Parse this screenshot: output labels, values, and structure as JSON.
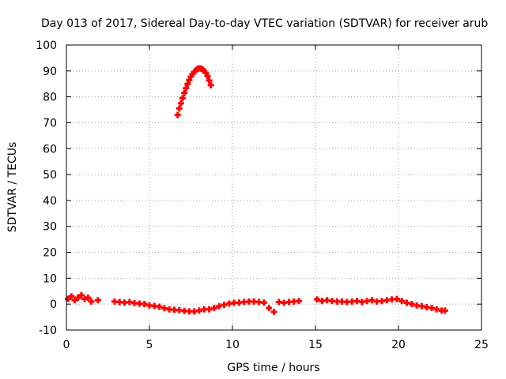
{
  "chart_data": {
    "type": "scatter",
    "title": "Day 013 of 2017, Sidereal Day-to-day VTEC variation (SDTVAR) for receiver arub",
    "xlabel": "GPS time / hours",
    "ylabel": "SDTVAR / TECUs",
    "xlim": [
      0,
      25
    ],
    "ylim": [
      -10,
      100
    ],
    "xticks": [
      0,
      5,
      10,
      15,
      20,
      25
    ],
    "yticks": [
      -10,
      0,
      10,
      20,
      30,
      40,
      50,
      60,
      70,
      80,
      90,
      100
    ],
    "grid": true,
    "marker": "plus",
    "colors": {
      "series": "#ff0000",
      "grid": "#a0a0a0",
      "frame": "#000000"
    },
    "series": [
      {
        "name": "SDTVAR",
        "points": [
          [
            0.1,
            2.0
          ],
          [
            0.3,
            3.0
          ],
          [
            0.5,
            1.5
          ],
          [
            0.7,
            2.5
          ],
          [
            0.9,
            3.5
          ],
          [
            1.1,
            2.0
          ],
          [
            1.3,
            2.5
          ],
          [
            1.5,
            1.0
          ],
          [
            1.9,
            1.5
          ],
          [
            2.9,
            1.0
          ],
          [
            3.2,
            0.8
          ],
          [
            3.5,
            0.6
          ],
          [
            3.8,
            0.8
          ],
          [
            4.1,
            0.4
          ],
          [
            4.4,
            0.2
          ],
          [
            4.7,
            0.0
          ],
          [
            5.0,
            -0.5
          ],
          [
            5.3,
            -0.7
          ],
          [
            5.6,
            -1.0
          ],
          [
            5.9,
            -1.6
          ],
          [
            6.2,
            -2.0
          ],
          [
            6.5,
            -2.2
          ],
          [
            6.8,
            -2.4
          ],
          [
            7.1,
            -2.6
          ],
          [
            7.4,
            -2.8
          ],
          [
            7.7,
            -2.8
          ],
          [
            8.0,
            -2.5
          ],
          [
            8.3,
            -2.0
          ],
          [
            8.6,
            -2.0
          ],
          [
            8.9,
            -1.5
          ],
          [
            9.2,
            -0.8
          ],
          [
            9.5,
            -0.3
          ],
          [
            9.8,
            0.2
          ],
          [
            10.1,
            0.5
          ],
          [
            10.4,
            0.6
          ],
          [
            10.7,
            0.8
          ],
          [
            11.0,
            1.0
          ],
          [
            11.3,
            1.0
          ],
          [
            11.6,
            0.8
          ],
          [
            11.9,
            0.6
          ],
          [
            12.2,
            -1.5
          ],
          [
            12.5,
            -3.0
          ],
          [
            12.8,
            0.8
          ],
          [
            13.1,
            0.5
          ],
          [
            13.4,
            0.8
          ],
          [
            13.7,
            1.0
          ],
          [
            14.0,
            1.2
          ],
          [
            15.1,
            1.8
          ],
          [
            15.4,
            1.2
          ],
          [
            15.7,
            1.5
          ],
          [
            16.0,
            1.2
          ],
          [
            16.3,
            1.0
          ],
          [
            16.6,
            1.0
          ],
          [
            16.9,
            0.8
          ],
          [
            17.2,
            1.0
          ],
          [
            17.5,
            1.2
          ],
          [
            17.8,
            0.8
          ],
          [
            18.1,
            1.2
          ],
          [
            18.4,
            1.5
          ],
          [
            18.7,
            1.0
          ],
          [
            19.0,
            1.2
          ],
          [
            19.3,
            1.5
          ],
          [
            19.6,
            1.8
          ],
          [
            19.9,
            2.0
          ],
          [
            20.2,
            1.2
          ],
          [
            20.5,
            0.5
          ],
          [
            20.8,
            0.0
          ],
          [
            21.1,
            -0.5
          ],
          [
            21.4,
            -0.8
          ],
          [
            21.7,
            -1.2
          ],
          [
            22.0,
            -1.5
          ],
          [
            22.3,
            -2.0
          ],
          [
            22.6,
            -2.5
          ],
          [
            22.8,
            -2.5
          ],
          [
            6.7,
            73.0
          ],
          [
            6.8,
            75.5
          ],
          [
            6.9,
            77.5
          ],
          [
            7.0,
            79.5
          ],
          [
            7.1,
            81.5
          ],
          [
            7.2,
            83.3
          ],
          [
            7.3,
            85.0
          ],
          [
            7.4,
            86.5
          ],
          [
            7.5,
            87.8
          ],
          [
            7.6,
            88.8
          ],
          [
            7.7,
            89.6
          ],
          [
            7.8,
            90.3
          ],
          [
            7.9,
            90.8
          ],
          [
            8.0,
            91.0
          ],
          [
            8.1,
            90.9
          ],
          [
            8.2,
            90.6
          ],
          [
            8.3,
            90.0
          ],
          [
            8.4,
            89.2
          ],
          [
            8.5,
            88.0
          ],
          [
            8.6,
            86.3
          ],
          [
            8.7,
            84.5
          ]
        ]
      }
    ]
  }
}
